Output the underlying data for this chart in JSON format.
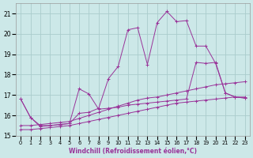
{
  "xlabel": "Windchill (Refroidissement éolien,°C)",
  "xlim": [
    -0.5,
    23.5
  ],
  "ylim": [
    15,
    21.5
  ],
  "yticks": [
    15,
    16,
    17,
    18,
    19,
    20,
    21
  ],
  "xticks": [
    0,
    1,
    2,
    3,
    4,
    5,
    6,
    7,
    8,
    9,
    10,
    11,
    12,
    13,
    14,
    15,
    16,
    17,
    18,
    19,
    20,
    21,
    22,
    23
  ],
  "background_color": "#cce8e8",
  "grid_color": "#aacccc",
  "line_color": "#993399",
  "series": [
    {
      "x": [
        0,
        1,
        2,
        3,
        4,
        5,
        6,
        7,
        8,
        9,
        10,
        11,
        12,
        13,
        14,
        15,
        16,
        17,
        18,
        19,
        20,
        21,
        22,
        23
      ],
      "y": [
        15.3,
        15.3,
        15.35,
        15.4,
        15.45,
        15.5,
        15.6,
        15.7,
        15.8,
        15.9,
        16.0,
        16.1,
        16.2,
        16.3,
        16.4,
        16.5,
        16.6,
        16.65,
        16.7,
        16.75,
        16.8,
        16.85,
        16.9,
        16.9
      ]
    },
    {
      "x": [
        0,
        1,
        2,
        3,
        4,
        5,
        6,
        7,
        8,
        9,
        10,
        11,
        12,
        13,
        14,
        15,
        16,
        17,
        18,
        19,
        20,
        21,
        22,
        23
      ],
      "y": [
        15.5,
        15.5,
        15.55,
        15.6,
        15.65,
        15.7,
        15.85,
        16.0,
        16.15,
        16.3,
        16.45,
        16.6,
        16.75,
        16.85,
        16.9,
        17.0,
        17.1,
        17.2,
        17.3,
        17.4,
        17.5,
        17.55,
        17.6,
        17.65
      ]
    },
    {
      "x": [
        0,
        1,
        2,
        3,
        4,
        5,
        6,
        7,
        8,
        9,
        10,
        11,
        12,
        13,
        14,
        15,
        16,
        17,
        18,
        19,
        20,
        21,
        22,
        23
      ],
      "y": [
        16.8,
        15.9,
        15.5,
        15.5,
        15.55,
        15.6,
        17.3,
        17.05,
        16.3,
        16.35,
        16.4,
        16.5,
        16.55,
        16.6,
        16.65,
        16.7,
        16.75,
        16.8,
        18.6,
        18.55,
        18.6,
        17.1,
        16.9,
        16.85
      ]
    },
    {
      "x": [
        0,
        1,
        2,
        3,
        4,
        5,
        6,
        7,
        8,
        9,
        10,
        11,
        12,
        13,
        14,
        15,
        16,
        17,
        18,
        19,
        20,
        21,
        22,
        23
      ],
      "y": [
        16.8,
        15.9,
        15.45,
        15.5,
        15.55,
        15.6,
        16.1,
        16.15,
        16.35,
        17.8,
        18.4,
        20.2,
        20.3,
        18.5,
        20.55,
        21.1,
        20.6,
        20.65,
        19.4,
        19.4,
        18.55,
        17.1,
        16.9,
        16.85
      ]
    }
  ]
}
